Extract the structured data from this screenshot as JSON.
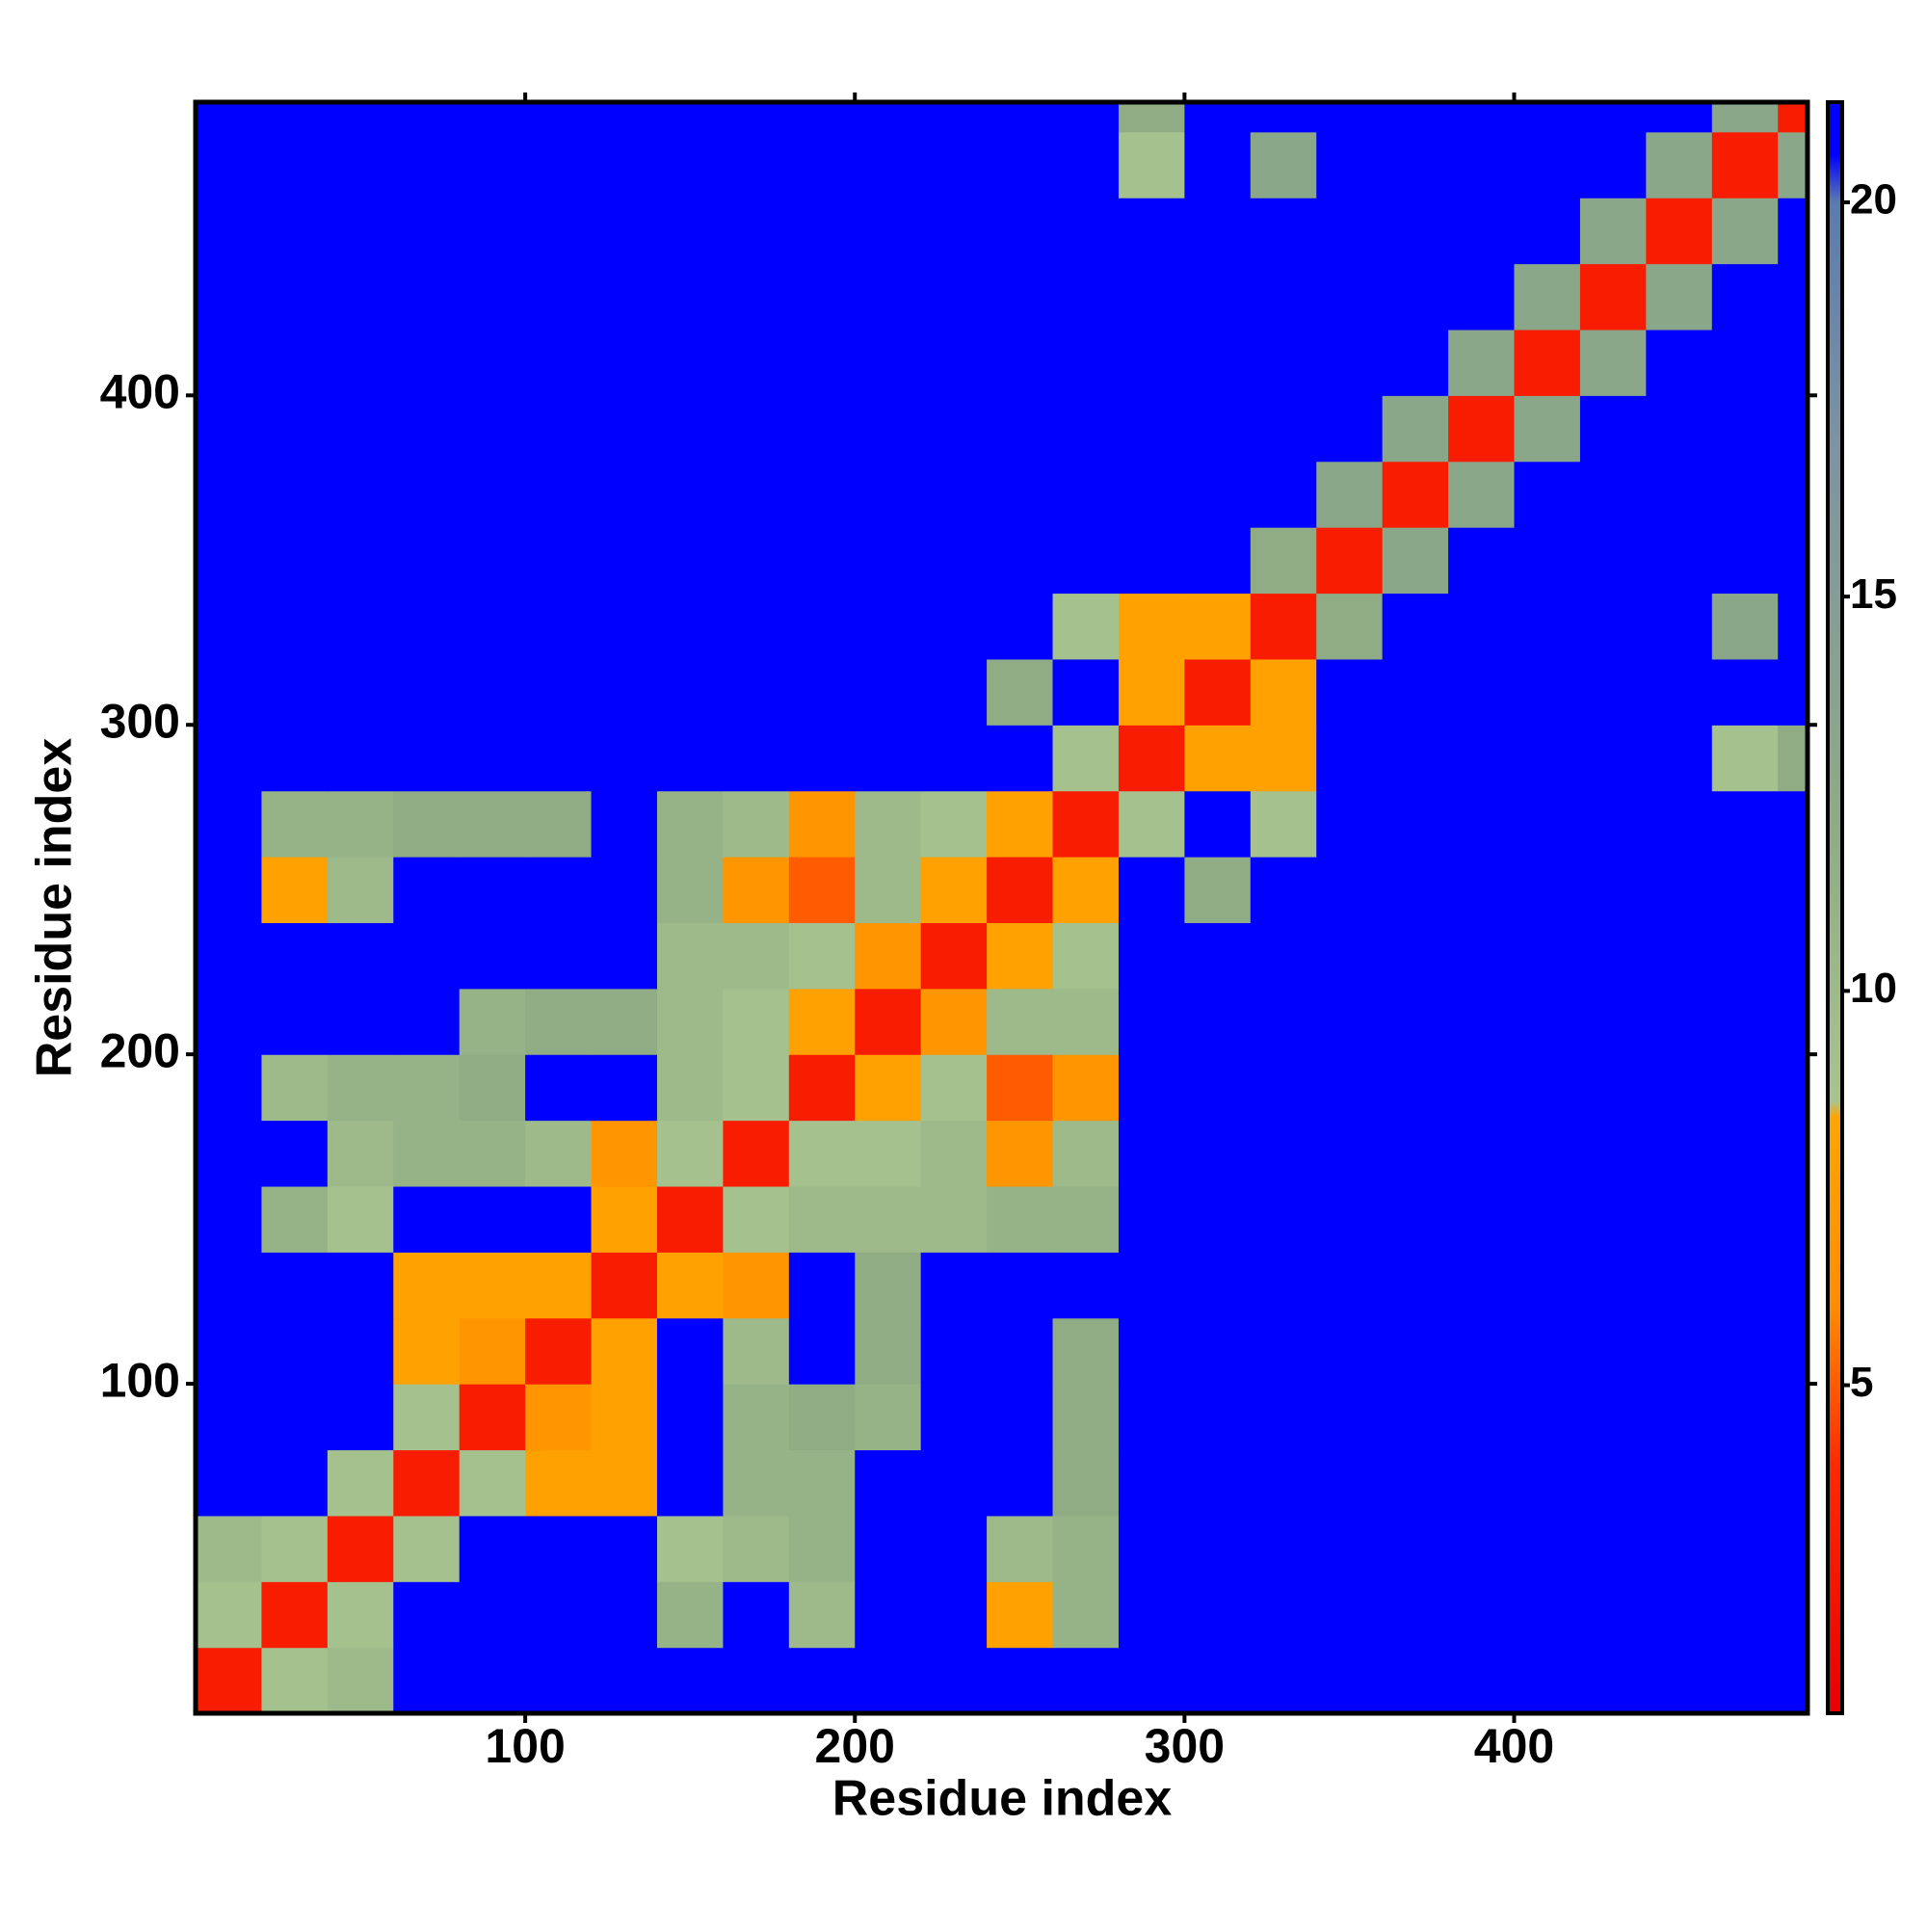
{
  "chart_data": {
    "type": "heatmap",
    "x_label": "Residue index",
    "y_label": "Residue index",
    "x": [
      10,
      30,
      50,
      70,
      90,
      110,
      130,
      150,
      170,
      190,
      210,
      230,
      250,
      270,
      290,
      310,
      330,
      350,
      370,
      390,
      410,
      430,
      450,
      470,
      490
    ],
    "y": [
      10,
      30,
      50,
      70,
      90,
      110,
      130,
      150,
      170,
      190,
      210,
      230,
      250,
      270,
      290,
      310,
      330,
      350,
      370,
      390,
      410,
      430,
      450,
      470,
      490
    ],
    "values": [
      [
        3,
        9,
        10,
        21,
        21,
        21,
        21,
        21,
        21,
        21,
        21,
        21,
        21,
        21,
        21,
        21,
        21,
        21,
        21,
        21,
        21,
        21,
        21,
        21,
        21
      ],
      [
        9,
        3,
        9,
        21,
        21,
        21,
        21,
        11,
        21,
        10,
        21,
        21,
        8,
        11,
        21,
        21,
        21,
        21,
        21,
        21,
        21,
        21,
        21,
        21,
        21
      ],
      [
        10,
        9,
        3,
        9,
        21,
        21,
        21,
        9,
        10,
        11,
        21,
        21,
        10,
        11,
        21,
        21,
        21,
        21,
        21,
        21,
        21,
        21,
        21,
        21,
        21
      ],
      [
        21,
        21,
        9,
        3,
        9,
        8,
        8,
        21,
        11,
        11,
        21,
        21,
        21,
        12,
        21,
        21,
        21,
        21,
        21,
        21,
        21,
        21,
        21,
        21,
        21
      ],
      [
        21,
        21,
        21,
        9,
        3,
        7,
        8,
        21,
        11,
        12,
        11,
        21,
        21,
        12,
        21,
        21,
        21,
        21,
        21,
        21,
        21,
        21,
        21,
        21,
        21
      ],
      [
        21,
        21,
        21,
        8,
        7,
        3,
        8,
        21,
        10,
        21,
        12,
        21,
        21,
        12,
        21,
        21,
        21,
        21,
        21,
        21,
        21,
        21,
        21,
        21,
        21
      ],
      [
        21,
        21,
        21,
        8,
        8,
        8,
        3,
        8,
        7,
        21,
        12,
        21,
        21,
        21,
        21,
        21,
        21,
        21,
        21,
        21,
        21,
        21,
        21,
        21,
        21
      ],
      [
        21,
        11,
        9,
        21,
        21,
        21,
        8,
        3,
        9,
        10,
        10,
        10,
        11,
        11,
        21,
        21,
        21,
        21,
        21,
        21,
        21,
        21,
        21,
        21,
        21
      ],
      [
        21,
        21,
        10,
        11,
        11,
        10,
        7,
        9,
        3,
        9,
        9,
        10,
        7,
        10,
        21,
        21,
        21,
        21,
        21,
        21,
        21,
        21,
        21,
        21,
        21
      ],
      [
        21,
        10,
        11,
        11,
        12,
        21,
        21,
        10,
        9,
        3,
        8,
        9,
        5,
        7,
        21,
        21,
        21,
        21,
        21,
        21,
        21,
        21,
        21,
        21,
        21
      ],
      [
        21,
        21,
        21,
        21,
        11,
        12,
        12,
        10,
        9,
        8,
        3,
        7,
        10,
        10,
        21,
        21,
        21,
        21,
        21,
        21,
        21,
        21,
        21,
        21,
        21
      ],
      [
        21,
        21,
        21,
        21,
        21,
        21,
        21,
        10,
        10,
        9,
        7,
        3,
        8,
        9,
        21,
        21,
        21,
        21,
        21,
        21,
        21,
        21,
        21,
        21,
        21
      ],
      [
        21,
        8,
        10,
        21,
        21,
        21,
        21,
        11,
        7,
        5,
        10,
        8,
        3,
        8,
        21,
        12,
        21,
        21,
        21,
        21,
        21,
        21,
        21,
        21,
        21
      ],
      [
        21,
        11,
        11,
        12,
        12,
        12,
        21,
        11,
        10,
        7,
        10,
        9,
        8,
        3,
        9,
        21,
        9,
        21,
        21,
        21,
        21,
        21,
        21,
        21,
        21
      ],
      [
        21,
        21,
        21,
        21,
        21,
        21,
        21,
        21,
        21,
        21,
        21,
        21,
        21,
        9,
        3,
        8,
        8,
        21,
        21,
        21,
        21,
        21,
        21,
        9,
        12
      ],
      [
        21,
        21,
        21,
        21,
        21,
        21,
        21,
        21,
        21,
        21,
        21,
        21,
        12,
        21,
        8,
        3,
        8,
        21,
        21,
        21,
        21,
        21,
        21,
        21,
        21
      ],
      [
        21,
        21,
        21,
        21,
        21,
        21,
        21,
        21,
        21,
        21,
        21,
        21,
        21,
        9,
        8,
        8,
        3,
        12,
        21,
        21,
        21,
        21,
        21,
        13,
        21
      ],
      [
        21,
        21,
        21,
        21,
        21,
        21,
        21,
        21,
        21,
        21,
        21,
        21,
        21,
        21,
        21,
        21,
        12,
        3,
        13,
        21,
        21,
        21,
        21,
        21,
        21
      ],
      [
        21,
        21,
        21,
        21,
        21,
        21,
        21,
        21,
        21,
        21,
        21,
        21,
        21,
        21,
        21,
        21,
        21,
        13,
        3,
        13,
        21,
        21,
        21,
        21,
        21
      ],
      [
        21,
        21,
        21,
        21,
        21,
        21,
        21,
        21,
        21,
        21,
        21,
        21,
        21,
        21,
        21,
        21,
        21,
        21,
        13,
        3,
        13,
        21,
        21,
        21,
        21
      ],
      [
        21,
        21,
        21,
        21,
        21,
        21,
        21,
        21,
        21,
        21,
        21,
        21,
        21,
        21,
        21,
        21,
        21,
        21,
        21,
        13,
        3,
        13,
        21,
        21,
        21
      ],
      [
        21,
        21,
        21,
        21,
        21,
        21,
        21,
        21,
        21,
        21,
        21,
        21,
        21,
        21,
        21,
        21,
        21,
        21,
        21,
        21,
        13,
        3,
        13,
        21,
        21
      ],
      [
        21,
        21,
        21,
        21,
        21,
        21,
        21,
        21,
        21,
        21,
        21,
        21,
        21,
        21,
        21,
        21,
        21,
        21,
        21,
        21,
        21,
        13,
        3,
        13,
        21
      ],
      [
        21,
        21,
        21,
        21,
        21,
        21,
        21,
        21,
        21,
        21,
        21,
        21,
        21,
        21,
        9,
        21,
        13,
        21,
        21,
        21,
        21,
        21,
        13,
        3,
        13
      ],
      [
        21,
        21,
        21,
        21,
        21,
        21,
        21,
        21,
        21,
        21,
        21,
        21,
        21,
        21,
        12,
        21,
        21,
        21,
        21,
        21,
        21,
        21,
        21,
        13,
        3
      ]
    ],
    "xlim": [
      0,
      489
    ],
    "ylim": [
      0,
      489
    ],
    "xticks": [
      100,
      200,
      300,
      400
    ],
    "yticks": [
      100,
      200,
      300,
      400
    ],
    "clim": [
      0.84,
      21.27
    ],
    "cticks": [
      5,
      10,
      15,
      20
    ],
    "colorscale": [
      [
        0.84,
        "#e80000"
      ],
      [
        4,
        "#ff2a00"
      ],
      [
        6,
        "#ff8c00"
      ],
      [
        8.4,
        "#ffa500"
      ],
      [
        8.6,
        "#a8c48e"
      ],
      [
        12,
        "#8fac84"
      ],
      [
        17,
        "#7d93a3"
      ],
      [
        20,
        "#5a7bb0"
      ],
      [
        20.6,
        "#0000ff"
      ],
      [
        21.27,
        "#0000ff"
      ]
    ]
  }
}
